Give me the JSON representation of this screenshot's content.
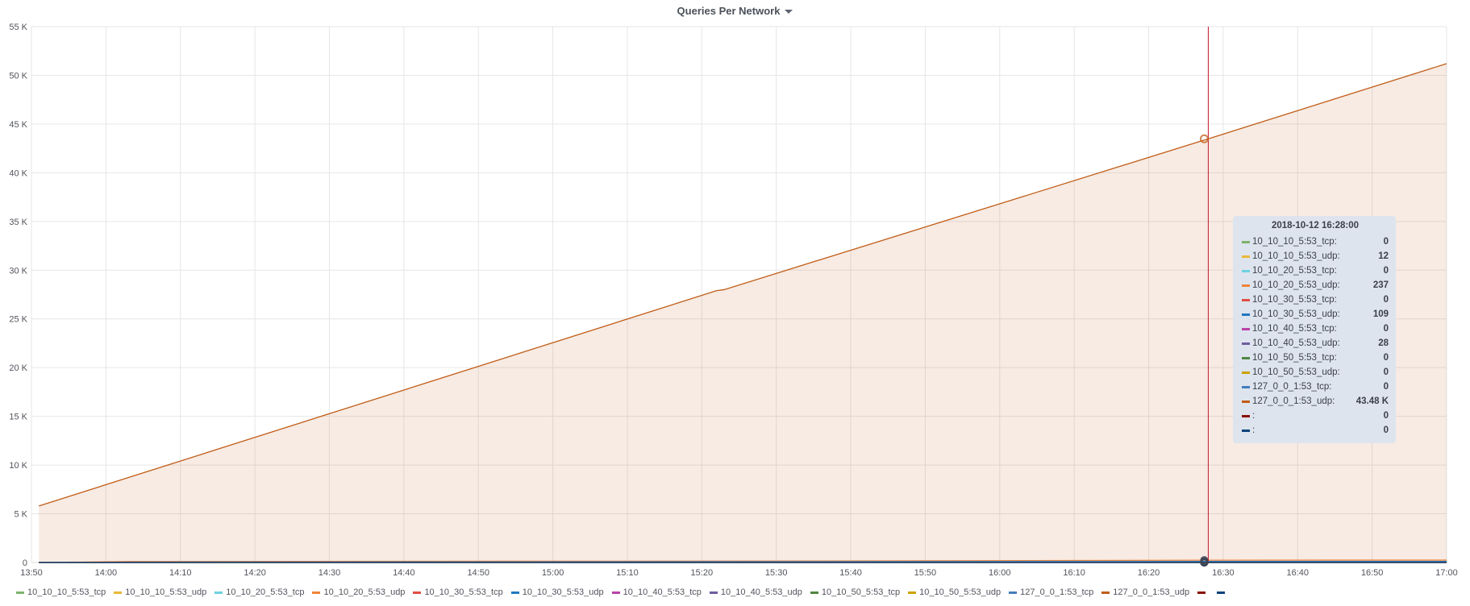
{
  "panel": {
    "title": "Queries Per Network"
  },
  "chart_data": {
    "type": "line",
    "title": "Queries Per Network",
    "xlabel": "",
    "ylabel": "",
    "x_ticks": [
      "13:50",
      "14:00",
      "14:10",
      "14:20",
      "14:30",
      "14:40",
      "14:50",
      "15:00",
      "15:10",
      "15:20",
      "15:30",
      "15:40",
      "15:50",
      "16:00",
      "16:10",
      "16:20",
      "16:30",
      "16:40",
      "16:50",
      "17:00"
    ],
    "y_ticks": [
      "0",
      "5 K",
      "10 K",
      "15 K",
      "20 K",
      "25 K",
      "30 K",
      "35 K",
      "40 K",
      "45 K",
      "50 K",
      "55 K"
    ],
    "xlim": [
      "2018-10-12 13:50",
      "2018-10-12 17:00"
    ],
    "ylim": [
      0,
      55000
    ],
    "grid": true,
    "legend_position": "bottom",
    "series": [
      {
        "name": "10_10_10_5:53_tcp",
        "color": "#7eb26d",
        "fill": false,
        "points": [
          [
            "13:51",
            0
          ],
          [
            "17:00",
            0
          ]
        ]
      },
      {
        "name": "10_10_10_5:53_udp",
        "color": "#eab839",
        "fill": false,
        "points": [
          [
            "13:51",
            0
          ],
          [
            "14:03",
            5
          ],
          [
            "16:28",
            12
          ],
          [
            "17:00",
            14
          ]
        ]
      },
      {
        "name": "10_10_20_5:53_tcp",
        "color": "#6ed0e0",
        "fill": false,
        "points": [
          [
            "13:51",
            0
          ],
          [
            "17:00",
            0
          ]
        ]
      },
      {
        "name": "10_10_20_5:53_udp",
        "color": "#ef843c",
        "fill": false,
        "points": [
          [
            "13:51",
            0
          ],
          [
            "14:03",
            100
          ],
          [
            "15:35",
            150
          ],
          [
            "16:28",
            237
          ],
          [
            "17:00",
            245
          ]
        ]
      },
      {
        "name": "10_10_30_5:53_tcp",
        "color": "#e24d42",
        "fill": false,
        "points": [
          [
            "13:51",
            0
          ],
          [
            "17:00",
            0
          ]
        ]
      },
      {
        "name": "10_10_30_5:53_udp",
        "color": "#1f78c1",
        "fill": false,
        "points": [
          [
            "13:51",
            0
          ],
          [
            "14:03",
            40
          ],
          [
            "16:28",
            109
          ],
          [
            "17:00",
            115
          ]
        ]
      },
      {
        "name": "10_10_40_5:53_tcp",
        "color": "#ba43a9",
        "fill": false,
        "points": [
          [
            "13:51",
            0
          ],
          [
            "17:00",
            0
          ]
        ]
      },
      {
        "name": "10_10_40_5:53_udp",
        "color": "#705da0",
        "fill": false,
        "points": [
          [
            "13:51",
            0
          ],
          [
            "14:03",
            10
          ],
          [
            "16:28",
            28
          ],
          [
            "17:00",
            30
          ]
        ]
      },
      {
        "name": "10_10_50_5:53_tcp",
        "color": "#508642",
        "fill": false,
        "points": [
          [
            "13:51",
            0
          ],
          [
            "17:00",
            0
          ]
        ]
      },
      {
        "name": "10_10_50_5:53_udp",
        "color": "#cca300",
        "fill": false,
        "points": [
          [
            "13:51",
            0
          ],
          [
            "17:00",
            0
          ]
        ]
      },
      {
        "name": "127_0_0_1:53_tcp",
        "color": "#447ebc",
        "fill": false,
        "points": [
          [
            "13:51",
            0
          ],
          [
            "17:00",
            0
          ]
        ]
      },
      {
        "name": "127_0_0_1:53_udp",
        "color": "#c15c17",
        "fill": true,
        "points": [
          [
            "13:51",
            5800
          ],
          [
            "15:22",
            27900
          ],
          [
            "15:23",
            28000
          ],
          [
            "16:28",
            43480
          ],
          [
            "17:00",
            51200
          ]
        ]
      },
      {
        "name": "",
        "color": "#890f02",
        "fill": false,
        "points": [
          [
            "13:51",
            0
          ],
          [
            "17:00",
            0
          ]
        ]
      },
      {
        "name": "",
        "color": "#0a437c",
        "fill": false,
        "points": [
          [
            "13:51",
            0
          ],
          [
            "17:00",
            0
          ]
        ]
      }
    ],
    "hover_time": "16:28",
    "tooltip": {
      "time": "2018-10-12 16:28:00",
      "rows": [
        {
          "name": "10_10_10_5:53_tcp:",
          "value": "0"
        },
        {
          "name": "10_10_10_5:53_udp:",
          "value": "12"
        },
        {
          "name": "10_10_20_5:53_tcp:",
          "value": "0"
        },
        {
          "name": "10_10_20_5:53_udp:",
          "value": "237"
        },
        {
          "name": "10_10_30_5:53_tcp:",
          "value": "0"
        },
        {
          "name": "10_10_30_5:53_udp:",
          "value": "109"
        },
        {
          "name": "10_10_40_5:53_tcp:",
          "value": "0"
        },
        {
          "name": "10_10_40_5:53_udp:",
          "value": "28"
        },
        {
          "name": "10_10_50_5:53_tcp:",
          "value": "0"
        },
        {
          "name": "10_10_50_5:53_udp:",
          "value": "0"
        },
        {
          "name": "127_0_0_1:53_tcp:",
          "value": "0"
        },
        {
          "name": "127_0_0_1:53_udp:",
          "value": "43.48 K"
        },
        {
          "name": ":",
          "value": "0"
        },
        {
          "name": ":",
          "value": "0"
        }
      ]
    }
  }
}
